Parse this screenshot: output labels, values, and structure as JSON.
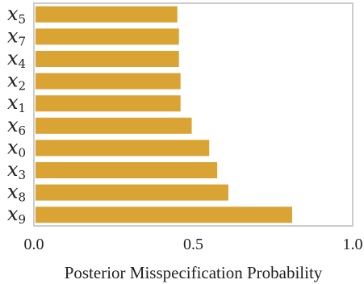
{
  "chart_data": {
    "type": "bar",
    "orientation": "horizontal",
    "categories": [
      {
        "base": "x",
        "sub": "5"
      },
      {
        "base": "x",
        "sub": "7"
      },
      {
        "base": "x",
        "sub": "4"
      },
      {
        "base": "x",
        "sub": "2"
      },
      {
        "base": "x",
        "sub": "1"
      },
      {
        "base": "x",
        "sub": "6"
      },
      {
        "base": "x",
        "sub": "0"
      },
      {
        "base": "x",
        "sub": "3"
      },
      {
        "base": "x",
        "sub": "8"
      },
      {
        "base": "x",
        "sub": "9"
      }
    ],
    "values": [
      0.45,
      0.455,
      0.455,
      0.46,
      0.46,
      0.495,
      0.55,
      0.575,
      0.61,
      0.81
    ],
    "xlabel": "Posterior Misspecification Probability",
    "ylabel": "",
    "xlim": [
      0,
      1
    ],
    "xticks": [
      "0.0",
      "0.5",
      "1.0"
    ],
    "grid": false,
    "colors": {
      "bar": "#D9A434",
      "frame": "#CCCCCC"
    }
  }
}
